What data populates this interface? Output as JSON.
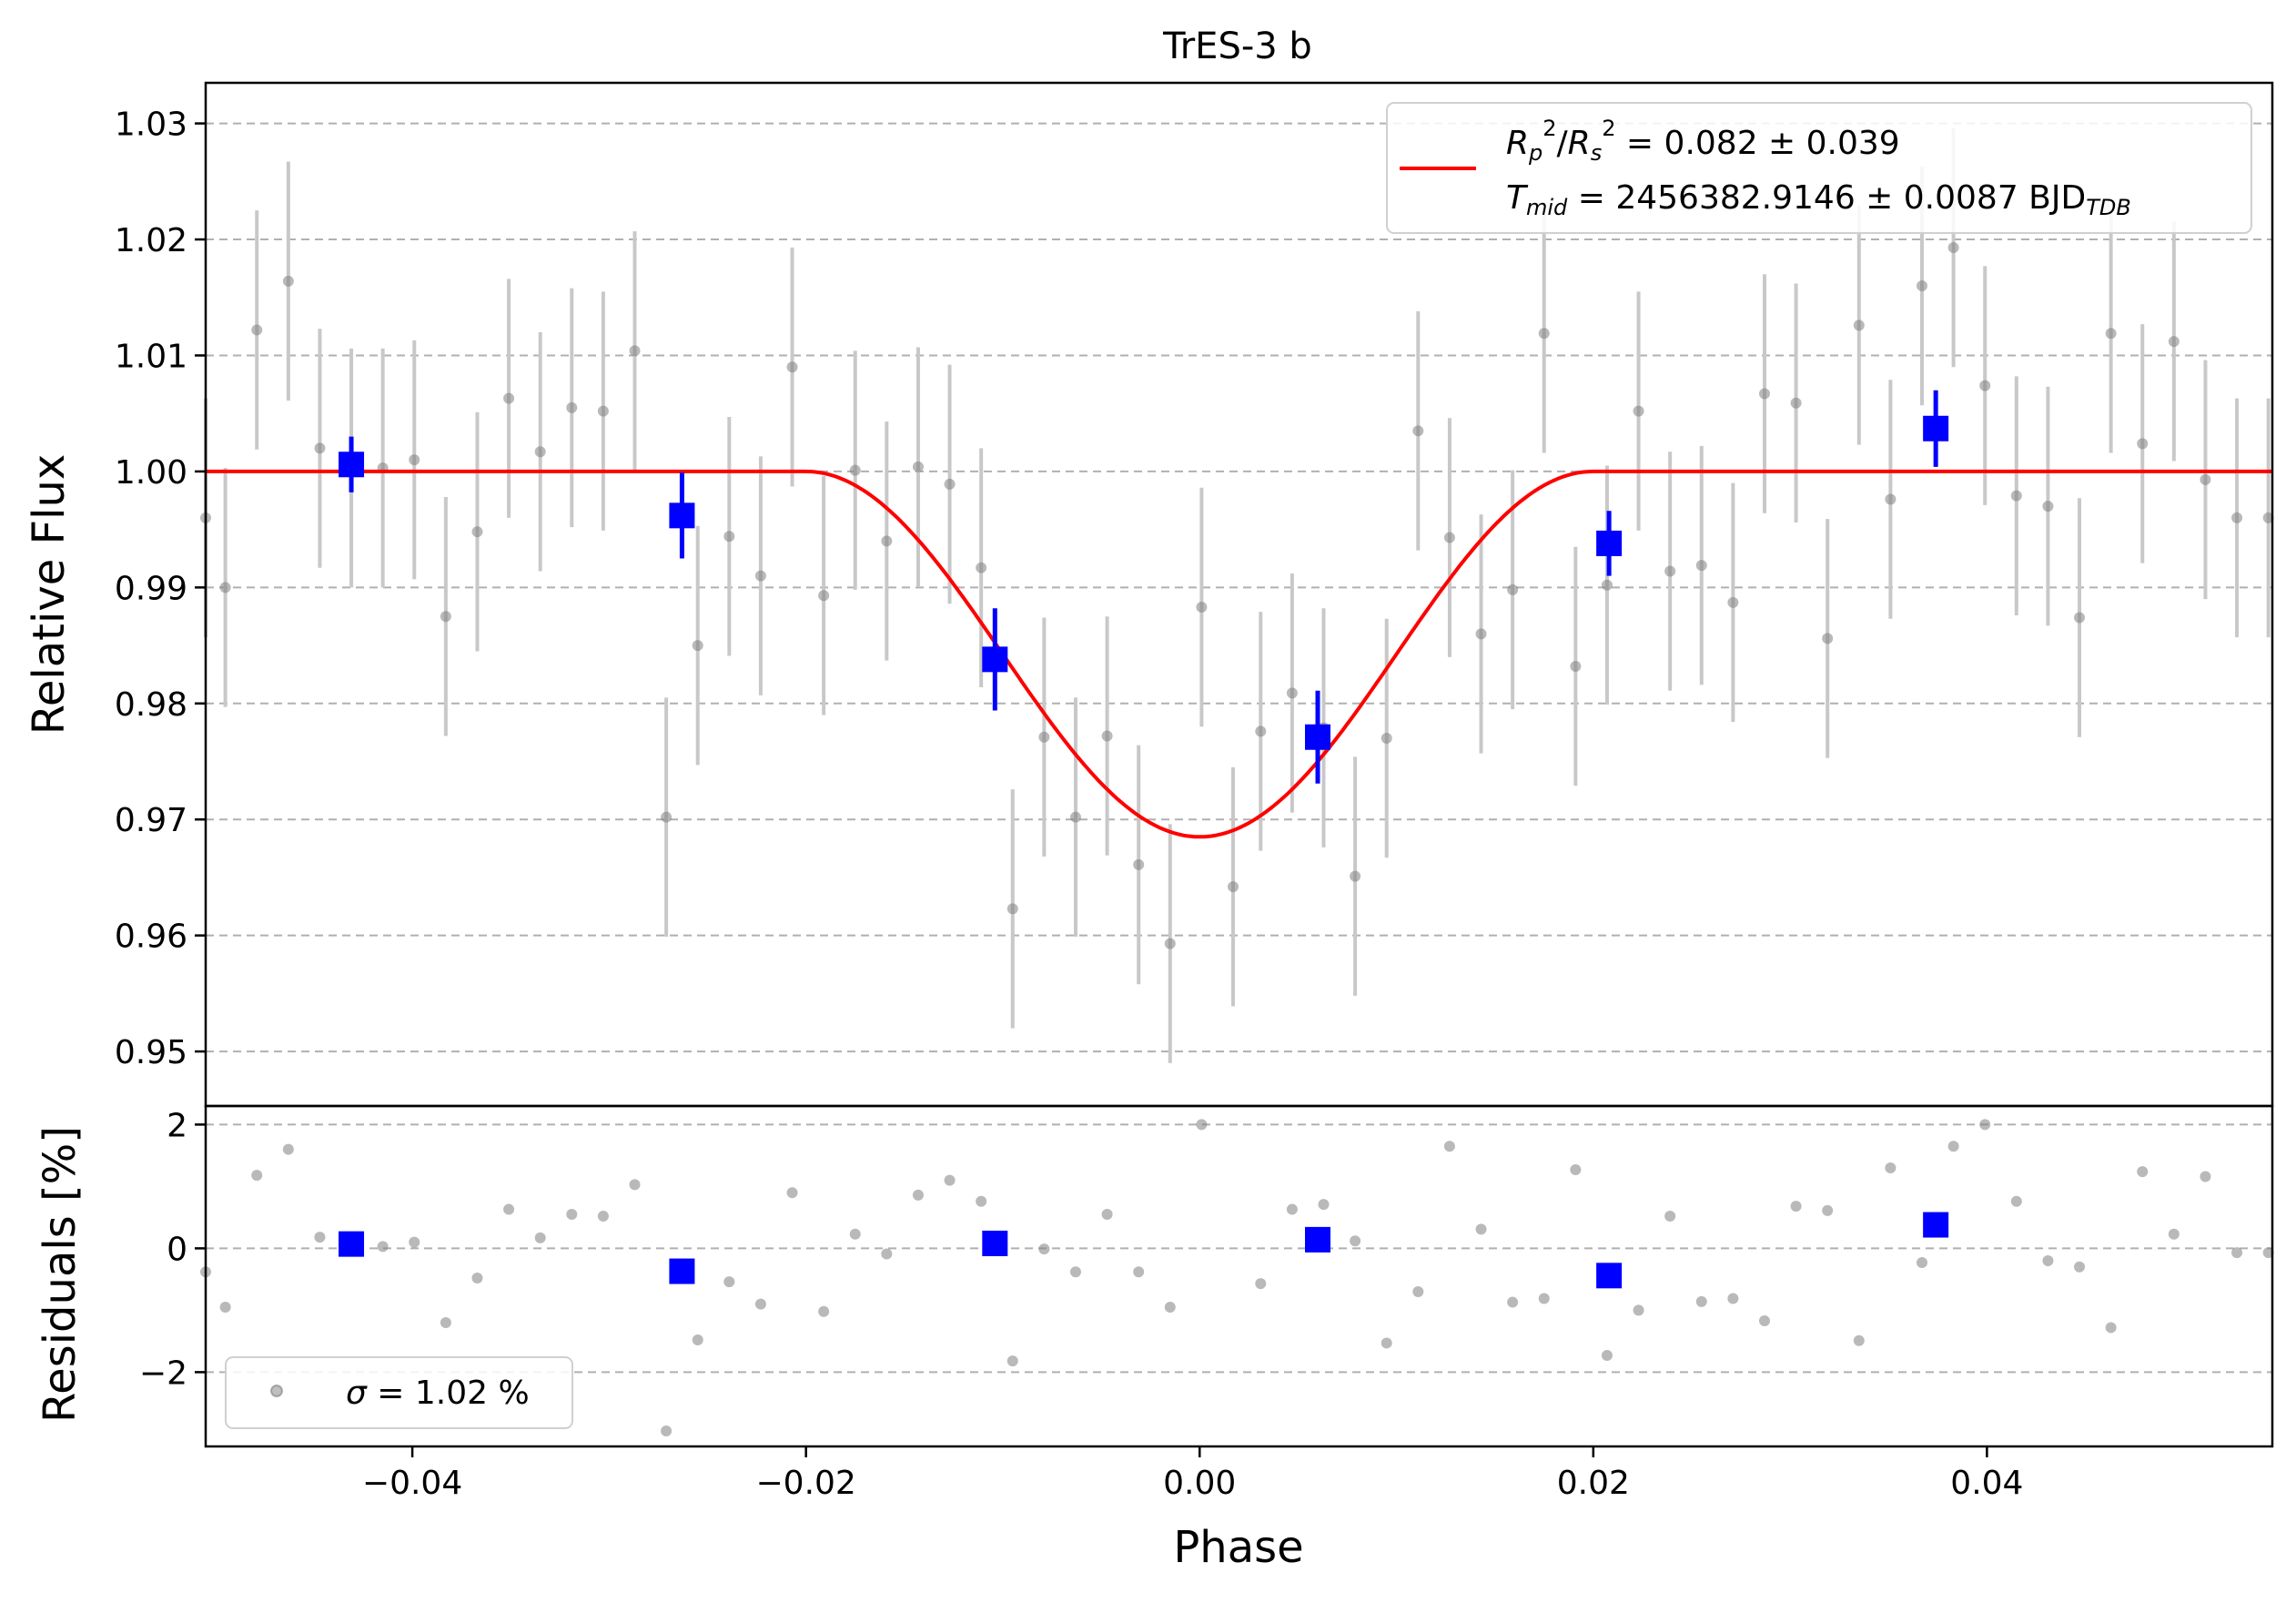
{
  "chart_data": [
    {
      "type": "scatter",
      "title": "TrES-3 b",
      "xlabel": "",
      "ylabel": "Relative Flux",
      "xlim": [
        -0.0505,
        0.0545
      ],
      "ylim": [
        0.9453,
        1.0335
      ],
      "yticks": [
        0.95,
        0.96,
        0.97,
        0.98,
        0.99,
        1.0,
        1.01,
        1.02,
        1.03
      ],
      "ytick_labels": [
        "0.95",
        "0.96",
        "0.97",
        "0.98",
        "0.99",
        "1.00",
        "1.01",
        "1.02",
        "1.03"
      ],
      "grid": "horizontal dashed",
      "legend_position": "top-right",
      "series": [
        {
          "name": "",
          "kind": "unbinned points",
          "color": "#808080",
          "yerr": 0.0103,
          "x": [
            -0.0505,
            -0.0495,
            -0.0479,
            -0.0463,
            -0.0447,
            -0.0431,
            -0.0415,
            -0.0399,
            -0.0383,
            -0.0367,
            -0.0351,
            -0.0335,
            -0.0319,
            -0.0303,
            -0.0287,
            -0.0271,
            -0.0255,
            -0.0239,
            -0.0223,
            -0.0207,
            -0.0191,
            -0.0175,
            -0.0159,
            -0.0143,
            -0.0127,
            -0.0111,
            -0.0095,
            -0.0079,
            -0.0063,
            -0.0047,
            -0.0031,
            -0.0015,
            0.0001,
            0.0017,
            0.0031,
            0.0047,
            0.0063,
            0.0079,
            0.0095,
            0.0111,
            0.0127,
            0.0143,
            0.0159,
            0.0175,
            0.0191,
            0.0207,
            0.0223,
            0.0239,
            0.0255,
            0.0271,
            0.0287,
            0.0303,
            0.0319,
            0.0335,
            0.0351,
            0.0367,
            0.0383,
            0.0399,
            0.0415,
            0.0431,
            0.0447,
            0.0463,
            0.0479,
            0.0495,
            0.0511,
            0.0527,
            0.0543
          ],
          "y": [
            0.996,
            0.99,
            1.0122,
            1.0164,
            1.002,
            1.0003,
            1.0003,
            1.001,
            0.9875,
            0.9948,
            1.0063,
            1.0017,
            1.0055,
            1.0052,
            1.0104,
            0.9702,
            0.985,
            0.9944,
            0.991,
            1.009,
            0.9893,
            1.0001,
            0.994,
            1.0004,
            0.9989,
            0.9917,
            0.9623,
            0.9771,
            0.9702,
            0.9772,
            0.9661,
            0.9593,
            0.9883,
            0.9642,
            0.9776,
            0.9809,
            0.9779,
            0.9651,
            0.977,
            1.0035,
            0.9943,
            0.986,
            0.9898,
            1.0119,
            0.9832,
            0.9902,
            1.0052,
            0.9914,
            0.9919,
            0.9887,
            1.0067,
            1.0059,
            0.9856,
            1.0126,
            0.9976,
            1.016,
            1.0193,
            1.0074,
            0.9979,
            0.997,
            0.9874,
            1.0119,
            1.0024,
            1.0112,
            0.9993,
            0.996,
            0.996
          ]
        },
        {
          "name": "",
          "kind": "binned points",
          "color": "#0000ff",
          "x": [
            -0.0431,
            -0.0263,
            -0.0104,
            0.006,
            0.0208,
            0.0374
          ],
          "y": [
            1.0006,
            0.9962,
            0.9838,
            0.9771,
            0.9938,
            1.0037
          ],
          "yerr": [
            0.0024,
            0.0037,
            0.0044,
            0.004,
            0.0028,
            0.0033
          ]
        },
        {
          "name": "R_p^2/R_s^2 = 0.082 ± 0.039",
          "kind": "model",
          "color": "#ff0000",
          "depth": 0.0315,
          "t14_half": 0.02,
          "baseline": 1.0
        }
      ],
      "legend": {
        "line1": {
          "sym": "R",
          "sub1": "p",
          "sup1": "2",
          "slash": "/",
          "sym2": "R",
          "sub2": "s",
          "sup2": "2",
          "rest": " = 0.082 ± 0.039"
        },
        "line2": {
          "sym": "T",
          "sub": "mid",
          "rest": " = 2456382.9146 ± 0.0087 BJD",
          "rest_sub": "TDB"
        }
      }
    },
    {
      "type": "scatter",
      "title": "",
      "xlabel": "Phase",
      "ylabel": "Residuals [%]",
      "xlim": [
        -0.0505,
        0.0545
      ],
      "ylim": [
        -3.2,
        2.3
      ],
      "xticks": [
        -0.04,
        -0.02,
        0.0,
        0.02,
        0.04
      ],
      "xtick_labels": [
        "−0.04",
        "−0.02",
        "0.00",
        "0.02",
        "0.04"
      ],
      "yticks": [
        -2,
        0,
        2
      ],
      "ytick_labels": [
        "−2",
        "0",
        "2"
      ],
      "grid": "horizontal dashed",
      "legend_position": "bottom-left",
      "legend": {
        "sym": "σ",
        "rest": " = 1.02 %"
      },
      "series": [
        {
          "name": "σ = 1.02 %",
          "kind": "residual points",
          "color": "#808080",
          "x": [
            -0.0505,
            -0.0495,
            -0.0479,
            -0.0463,
            -0.0447,
            -0.0415,
            -0.0399,
            -0.0383,
            -0.0367,
            -0.0351,
            -0.0335,
            -0.0319,
            -0.0303,
            -0.0287,
            -0.0271,
            -0.0255,
            -0.0239,
            -0.0223,
            -0.0207,
            -0.0191,
            -0.0175,
            -0.0159,
            -0.0143,
            -0.0127,
            -0.0111,
            -0.0095,
            -0.0079,
            -0.0063,
            -0.0047,
            -0.0031,
            -0.0015,
            0.0001,
            0.0031,
            0.0047,
            0.0063,
            0.0079,
            0.0095,
            0.0111,
            0.0127,
            0.0143,
            0.0159,
            0.0175,
            0.0191,
            0.0207,
            0.0223,
            0.0239,
            0.0255,
            0.0271,
            0.0287,
            0.0303,
            0.0319,
            0.0335,
            0.0351,
            0.0367,
            0.0383,
            0.0399,
            0.0415,
            0.0431,
            0.0447,
            0.0463,
            0.0479,
            0.0495,
            0.0511,
            0.0527,
            0.0543
          ],
          "y": [
            -0.38,
            -0.95,
            1.18,
            1.6,
            0.18,
            0.03,
            0.1,
            -1.2,
            -0.48,
            0.63,
            0.17,
            0.55,
            0.52,
            1.03,
            -2.95,
            -1.48,
            -0.54,
            -0.9,
            0.9,
            -1.02,
            0.23,
            -0.09,
            0.86,
            1.1,
            0.76,
            -1.82,
            -0.01,
            -0.38,
            0.55,
            -0.38,
            -0.95,
            2.0,
            -0.57,
            0.63,
            0.71,
            0.12,
            -1.53,
            -0.7,
            1.65,
            0.31,
            -0.87,
            -0.81,
            1.27,
            -1.73,
            -1.0,
            0.52,
            -0.86,
            -0.81,
            -1.17,
            0.68,
            0.61,
            -1.49,
            1.3,
            -0.23,
            1.65,
            2.0,
            0.76,
            -0.2,
            -0.3,
            -1.28,
            1.24,
            0.23,
            1.16,
            -0.07,
            -0.07
          ]
        },
        {
          "name": "",
          "kind": "binned residuals",
          "color": "#0000ff",
          "x": [
            -0.0431,
            -0.0263,
            -0.0104,
            0.006,
            0.0208,
            0.0374
          ],
          "y": [
            0.07,
            -0.37,
            0.08,
            0.14,
            -0.44,
            0.38
          ]
        }
      ]
    }
  ]
}
